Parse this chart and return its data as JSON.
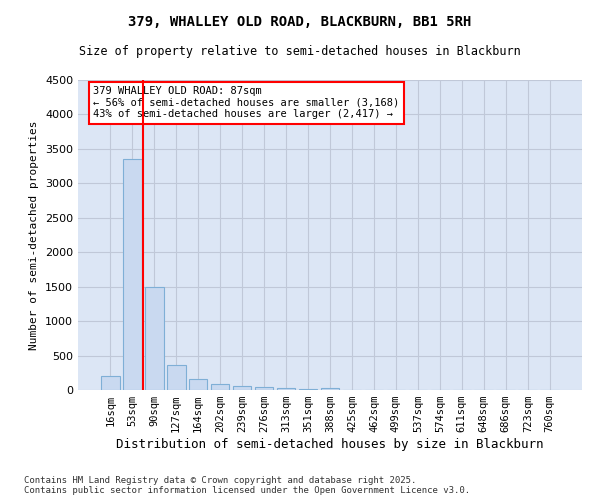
{
  "title1": "379, WHALLEY OLD ROAD, BLACKBURN, BB1 5RH",
  "title2": "Size of property relative to semi-detached houses in Blackburn",
  "xlabel": "Distribution of semi-detached houses by size in Blackburn",
  "ylabel": "Number of semi-detached properties",
  "categories": [
    "16sqm",
    "53sqm",
    "90sqm",
    "127sqm",
    "164sqm",
    "202sqm",
    "239sqm",
    "276sqm",
    "313sqm",
    "351sqm",
    "388sqm",
    "425sqm",
    "462sqm",
    "499sqm",
    "537sqm",
    "574sqm",
    "611sqm",
    "648sqm",
    "686sqm",
    "723sqm",
    "760sqm"
  ],
  "values": [
    200,
    3350,
    1490,
    370,
    155,
    90,
    60,
    45,
    30,
    15,
    30,
    0,
    0,
    0,
    0,
    0,
    0,
    0,
    0,
    0,
    0
  ],
  "bar_color": "#c9d9f0",
  "bar_edge_color": "#7fafd6",
  "marker_line_color": "red",
  "annotation_text": "379 WHALLEY OLD ROAD: 87sqm\n← 56% of semi-detached houses are smaller (3,168)\n43% of semi-detached houses are larger (2,417) →",
  "annotation_box_color": "white",
  "annotation_box_edge": "red",
  "ylim": [
    0,
    4500
  ],
  "yticks": [
    0,
    500,
    1000,
    1500,
    2000,
    2500,
    3000,
    3500,
    4000,
    4500
  ],
  "grid_color": "#c0c8d8",
  "bg_color": "#dce6f5",
  "footnote": "Contains HM Land Registry data © Crown copyright and database right 2025.\nContains public sector information licensed under the Open Government Licence v3.0.",
  "fig_width": 6.0,
  "fig_height": 5.0,
  "dpi": 100
}
